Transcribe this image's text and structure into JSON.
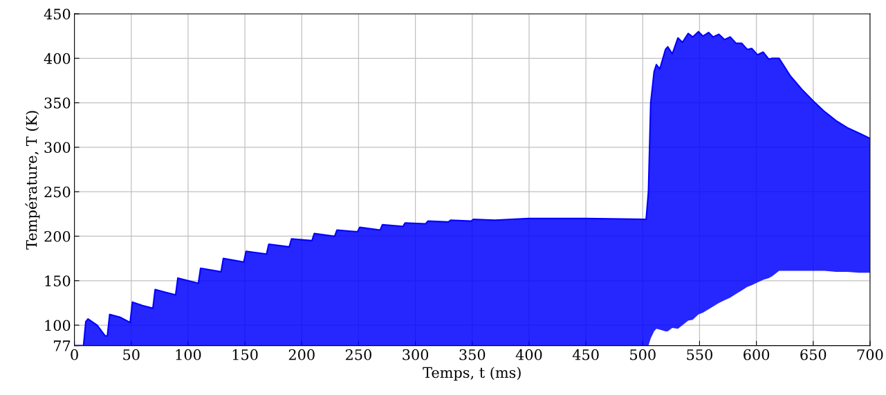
{
  "chart_data": {
    "type": "line",
    "xlabel": "Temps, t (ms)",
    "ylabel": "Température, T (K)",
    "x": [
      0,
      8,
      10,
      12,
      20,
      27,
      29,
      31,
      40,
      49,
      51,
      60,
      69,
      71,
      80,
      89,
      91,
      100,
      109,
      111,
      120,
      129,
      131,
      149,
      151,
      169,
      171,
      189,
      191,
      209,
      211,
      229,
      231,
      249,
      251,
      269,
      271,
      289,
      291,
      309,
      311,
      329,
      331,
      349,
      351,
      370,
      400,
      450,
      503,
      505,
      507,
      510,
      512,
      515,
      520,
      522,
      526,
      531,
      535,
      540,
      544,
      549,
      553,
      558,
      562,
      567,
      572,
      577,
      582,
      587,
      592,
      596,
      601,
      606,
      611,
      614,
      620,
      630,
      640,
      650,
      660,
      670,
      680,
      690,
      700
    ],
    "series": [
      {
        "color": "#0000ff",
        "values": [
          77,
          77,
          104,
          107,
          100,
          88,
          88,
          112,
          109,
          103,
          126,
          122,
          119,
          140,
          137,
          134,
          153,
          150,
          147,
          164,
          162,
          160,
          175,
          171,
          183,
          180,
          191,
          188,
          197,
          195,
          203,
          200,
          207,
          205,
          210,
          207,
          213,
          211,
          215,
          214,
          217,
          216,
          218,
          217,
          219,
          218,
          220,
          220,
          219,
          250,
          350,
          385,
          393,
          388,
          410,
          413,
          405,
          423,
          418,
          428,
          424,
          430,
          425,
          429,
          424,
          427,
          421,
          424,
          417,
          417,
          410,
          411,
          404,
          407,
          399,
          400,
          400,
          380,
          365,
          352,
          340,
          330,
          322,
          316,
          310
        ],
        "lower": [
          77,
          77,
          77,
          77,
          77,
          77,
          77,
          77,
          77,
          77,
          77,
          77,
          77,
          77,
          77,
          77,
          77,
          77,
          77,
          77,
          77,
          77,
          77,
          77,
          77,
          77,
          77,
          77,
          77,
          77,
          77,
          77,
          77,
          77,
          77,
          77,
          77,
          77,
          77,
          77,
          77,
          77,
          77,
          77,
          77,
          77,
          77,
          77,
          77,
          77,
          85,
          93,
          96,
          95,
          93,
          93,
          97,
          96,
          100,
          105,
          106,
          112,
          114,
          118,
          121,
          125,
          128,
          131,
          135,
          139,
          143,
          145,
          148,
          151,
          153,
          155,
          161,
          161,
          161,
          161,
          161,
          160,
          160,
          159,
          159
        ],
        "upper": [
          77,
          77,
          104,
          107,
          100,
          88,
          88,
          112,
          109,
          103,
          126,
          122,
          119,
          140,
          137,
          134,
          153,
          150,
          147,
          164,
          162,
          160,
          175,
          171,
          183,
          180,
          191,
          188,
          197,
          195,
          203,
          200,
          207,
          205,
          210,
          207,
          213,
          211,
          215,
          214,
          217,
          216,
          218,
          217,
          219,
          218,
          220,
          220,
          219,
          250,
          350,
          385,
          393,
          388,
          410,
          413,
          405,
          423,
          418,
          428,
          424,
          430,
          425,
          429,
          424,
          427,
          421,
          424,
          417,
          417,
          410,
          411,
          404,
          407,
          399,
          400,
          400,
          380,
          365,
          352,
          340,
          330,
          322,
          316,
          310
        ]
      }
    ],
    "xlim": [
      0,
      700
    ],
    "ylim": [
      77,
      450
    ],
    "xticks": [
      0,
      50,
      100,
      150,
      200,
      250,
      300,
      350,
      400,
      450,
      500,
      550,
      600,
      650,
      700
    ],
    "yticks": [
      77,
      100,
      150,
      200,
      250,
      300,
      350,
      400,
      450
    ],
    "grid": true,
    "marker": "none",
    "line_style": "solid"
  }
}
